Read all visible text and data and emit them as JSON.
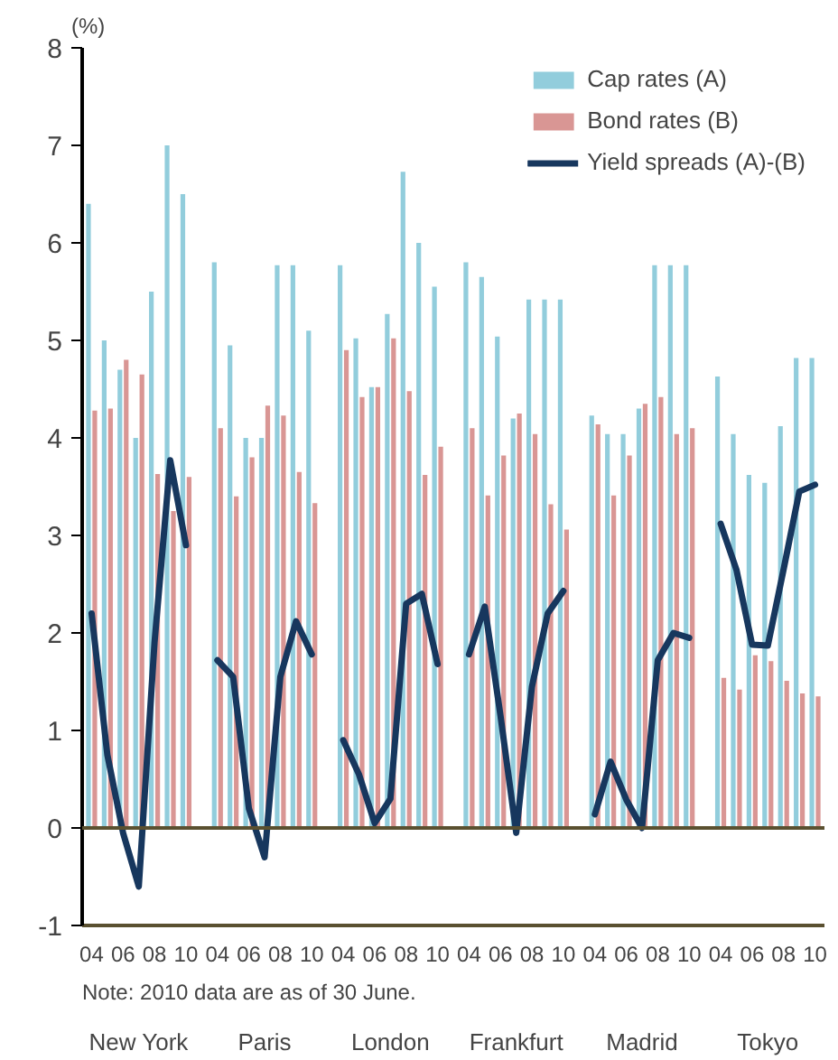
{
  "chart_data": {
    "type": "bar",
    "ylabel": "(%)",
    "categories": [
      "04",
      null,
      "06",
      null,
      "08",
      null,
      "10",
      null,
      "04",
      null,
      "06",
      null,
      "08",
      null,
      "10",
      null,
      "04",
      null,
      "06",
      null,
      "08",
      null,
      "10",
      null,
      "04",
      null,
      "06",
      null,
      "08",
      null,
      "10",
      null,
      "04",
      null,
      "06",
      null,
      "08",
      null,
      "10",
      null,
      "04",
      null,
      "06",
      null,
      "08",
      null,
      "10"
    ],
    "series": [
      {
        "name": "Cap rates (A)",
        "color": "#92cddc",
        "values": [
          6.4,
          5.0,
          4.7,
          4.0,
          5.5,
          7.0,
          6.5,
          null,
          5.8,
          4.95,
          4.0,
          4.0,
          5.77,
          5.77,
          5.1,
          null,
          5.77,
          5.02,
          4.52,
          5.27,
          6.73,
          6.0,
          5.55,
          null,
          5.8,
          5.65,
          5.04,
          4.2,
          5.42,
          5.42,
          5.42,
          null,
          4.23,
          4.04,
          4.04,
          4.3,
          5.77,
          5.77,
          5.77,
          null,
          4.63,
          4.04,
          3.62,
          3.54,
          4.12,
          4.82,
          4.82
        ]
      },
      {
        "name": "Bond rates (B)",
        "color": "#d99694",
        "values": [
          4.28,
          4.3,
          4.8,
          4.65,
          3.63,
          3.25,
          3.6,
          null,
          4.1,
          3.4,
          3.8,
          4.33,
          4.23,
          3.65,
          3.33,
          null,
          4.9,
          4.42,
          4.52,
          5.02,
          4.48,
          3.62,
          3.91,
          null,
          4.1,
          3.41,
          3.82,
          4.25,
          4.04,
          3.32,
          3.06,
          null,
          4.14,
          3.41,
          3.82,
          4.35,
          4.42,
          4.04,
          4.1,
          null,
          1.54,
          1.42,
          1.77,
          1.71,
          1.51,
          1.38,
          1.35
        ]
      },
      {
        "name": "Yield spreads (A)-(B)",
        "type": "line",
        "color": "#17375e",
        "values": [
          2.2,
          0.75,
          -0.05,
          -0.6,
          1.9,
          3.77,
          2.9,
          null,
          1.72,
          1.55,
          0.2,
          -0.3,
          1.55,
          2.12,
          1.78,
          null,
          0.9,
          0.55,
          0.05,
          0.3,
          2.3,
          2.4,
          1.68,
          null,
          1.78,
          2.27,
          1.15,
          -0.05,
          1.45,
          2.2,
          2.43,
          null,
          0.14,
          0.68,
          0.29,
          0.0,
          1.72,
          2.0,
          1.95,
          null,
          3.12,
          2.65,
          1.88,
          1.87,
          2.65,
          3.45,
          3.52
        ]
      }
    ],
    "ylim": [
      -1,
      8
    ],
    "yticks": [
      -1,
      0,
      1,
      2,
      3,
      4,
      5,
      6,
      7,
      8
    ],
    "ref_lines": [
      {
        "axis": "y",
        "value": 0,
        "color": "#5a5030"
      }
    ],
    "grid": false,
    "legend": "top right",
    "annotations": [
      "New York",
      "Paris",
      "London",
      "Frankfurt",
      "Madrid",
      "Tokyo",
      "Note: 2010 data are as of  30 June."
    ]
  }
}
